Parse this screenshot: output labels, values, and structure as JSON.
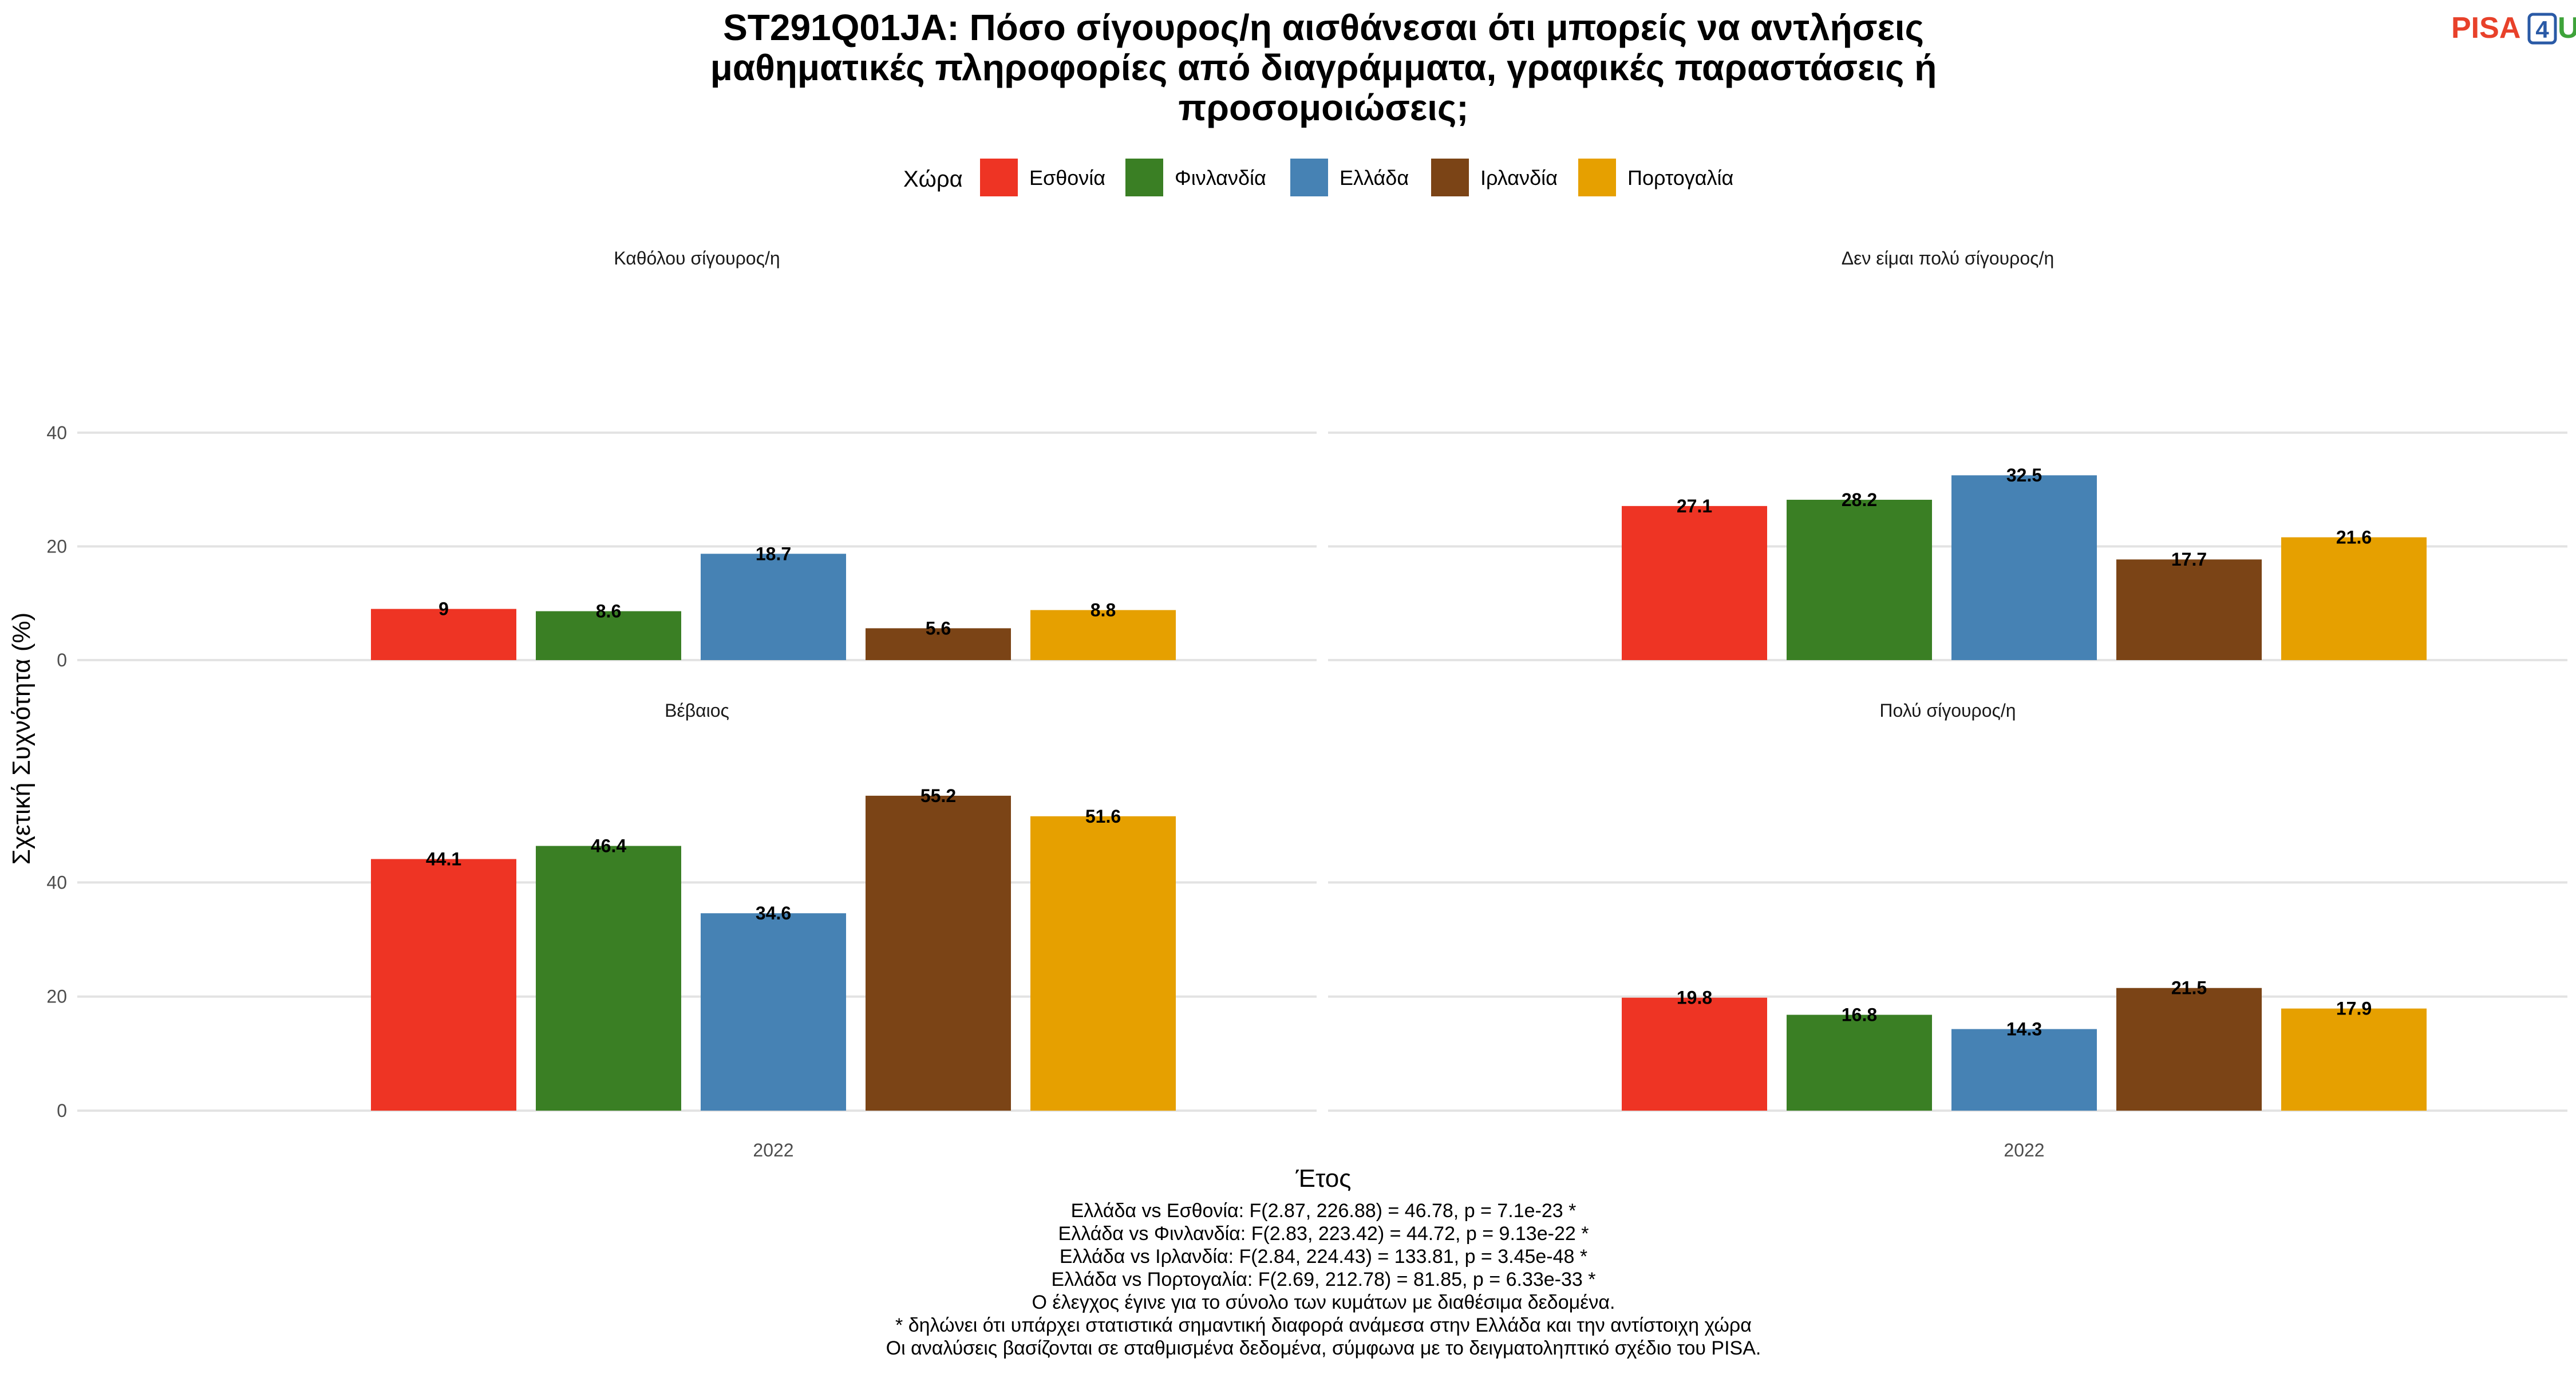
{
  "title_lines": [
    "ST291Q01JA: Πόσο σίγουρος/η αισθάνεσαι ότι μπορείς να αντλήσεις",
    "μαθηματικές πληροφορίες από διαγράμματα, γραφικές παραστάσεις ή",
    "προσομοιώσεις;"
  ],
  "logo": {
    "text": "PISA",
    "digit": "4",
    "letter": "U",
    "colors": {
      "pisa": "#e8412a",
      "digit": "#2a5aa6",
      "letter": "#3ea33a"
    }
  },
  "legend": {
    "title": "Χώρα"
  },
  "countries": [
    {
      "name": "Εσθονία",
      "color": "#ee3424"
    },
    {
      "name": "Φινλανδία",
      "color": "#3a7f24"
    },
    {
      "name": "Ελλάδα",
      "color": "#4682b4"
    },
    {
      "name": "Ιρλανδία",
      "color": "#7b4416"
    },
    {
      "name": "Πορτογαλία",
      "color": "#e6a000"
    }
  ],
  "chart_data": {
    "type": "bar",
    "x": [
      "2022"
    ],
    "xlabel": "Έτος",
    "ylabel": "Σχετική Συχνότητα (%)",
    "ylim": [
      0,
      58
    ],
    "yticks": [
      0,
      20,
      40
    ],
    "grid": true,
    "legend_position": "top",
    "facets": [
      {
        "label": "Καθόλου σίγουρος/η",
        "values": [
          9,
          8.6,
          18.7,
          5.6,
          8.8
        ]
      },
      {
        "label": "Δεν είμαι πολύ σίγουρος/η",
        "values": [
          27.1,
          28.2,
          32.5,
          17.7,
          21.6
        ]
      },
      {
        "label": "Βέβαιος",
        "values": [
          44.1,
          46.4,
          34.6,
          55.2,
          51.6
        ]
      },
      {
        "label": "Πολύ σίγουρος/η",
        "values": [
          19.8,
          16.8,
          14.3,
          21.5,
          17.9
        ]
      }
    ]
  },
  "notes": [
    "Ελλάδα vs Εσθονία: F(2.87, 226.88) = 46.78, p = 7.1e-23 *",
    "Ελλάδα vs Φινλανδία: F(2.83, 223.42) = 44.72, p = 9.13e-22 *",
    "Ελλάδα vs Ιρλανδία: F(2.84, 224.43) = 133.81, p = 3.45e-48 *",
    "Ελλάδα vs Πορτογαλία: F(2.69, 212.78) = 81.85, p = 6.33e-33 *",
    "Ο έλεγχος έγινε για το σύνολο των κυμάτων με διαθέσιμα δεδομένα.",
    "* δηλώνει ότι υπάρχει στατιστικά σημαντική διαφορά ανάμεσα στην Ελλάδα και την αντίστοιχη χώρα",
    "Οι αναλύσεις βασίζονται σε σταθμισμένα δεδομένα, σύμφωνα με το δειγματοληπτικό σχέδιο του PISA."
  ]
}
